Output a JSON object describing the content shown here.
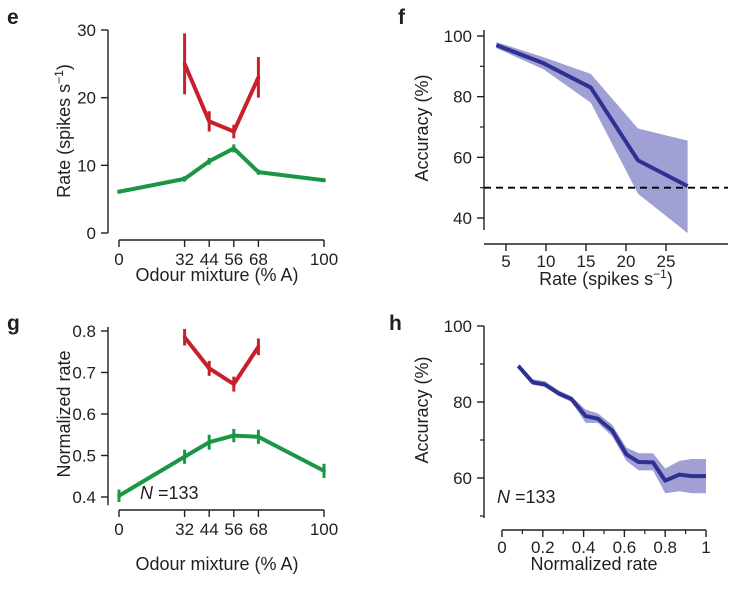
{
  "chart_data": [
    {
      "panel": "e",
      "type": "line",
      "xlabel": "Odour mixture (% A)",
      "ylabel": "Rate (spikes s",
      "ylabel_sup": "−1",
      "ylabel_close": ")",
      "x_ticks": [
        0,
        32,
        44,
        56,
        68,
        100
      ],
      "y_ticks": [
        0,
        10,
        20,
        30
      ],
      "ylim": [
        0,
        30
      ],
      "colors": {
        "red": "#c8202a",
        "green": "#1b9644"
      },
      "series": [
        {
          "color": "#c8202a",
          "x": [
            32,
            44,
            56,
            68
          ],
          "y": [
            25,
            16.5,
            15,
            23
          ],
          "err": [
            4.5,
            1.5,
            1.0,
            3.0
          ]
        },
        {
          "color": "#1b9644",
          "x": [
            0,
            32,
            44,
            56,
            68,
            100
          ],
          "y": [
            6.1,
            8,
            10.6,
            12.5,
            9,
            7.8
          ],
          "err": [
            0.3,
            0.4,
            0.5,
            0.6,
            0.4,
            0.3
          ]
        }
      ]
    },
    {
      "panel": "f",
      "type": "area",
      "xlabel": "Rate (spikes s",
      "xlabel_sup": "−1",
      "xlabel_close": ")",
      "ylabel": "Accuracy (%)",
      "x_ticks": [
        5,
        10,
        15,
        20,
        25
      ],
      "xlim": [
        2.5,
        27.7
      ],
      "y_ticks": [
        40,
        60,
        80,
        100
      ],
      "ylim": [
        35,
        100
      ],
      "reference_line": 50,
      "colors": {
        "line": "#2e3192",
        "band": "#9b9bd3"
      },
      "x": [
        3.8,
        9.7,
        15.6,
        21.5,
        27.7
      ],
      "y": [
        97,
        91,
        83,
        59,
        50.5
      ],
      "lower": [
        96,
        89,
        78,
        48,
        35
      ],
      "upper": [
        98,
        93,
        87.5,
        69.5,
        65.5
      ]
    },
    {
      "panel": "g",
      "type": "line",
      "xlabel": "Odour mixture (% A)",
      "ylabel": "Normalized rate",
      "annotation_n": "N",
      "annotation_val": " =133",
      "x_ticks": [
        0,
        32,
        44,
        56,
        68,
        100
      ],
      "y_ticks": [
        "0.4",
        "0.5",
        "0.6",
        "0.7",
        "0.8"
      ],
      "ylim": [
        0.38,
        0.81
      ],
      "colors": {
        "red": "#c8202a",
        "green": "#1b9644"
      },
      "series": [
        {
          "color": "#c8202a",
          "x": [
            32,
            44,
            56,
            68
          ],
          "y": [
            0.785,
            0.71,
            0.672,
            0.762
          ],
          "err": [
            0.02,
            0.018,
            0.018,
            0.02
          ]
        },
        {
          "color": "#1b9644",
          "x": [
            0,
            32,
            44,
            56,
            68,
            100
          ],
          "y": [
            0.403,
            0.497,
            0.532,
            0.548,
            0.545,
            0.463
          ],
          "err": [
            0.015,
            0.017,
            0.018,
            0.016,
            0.017,
            0.017
          ]
        }
      ]
    },
    {
      "panel": "h",
      "type": "area",
      "xlabel": "Normalized rate",
      "ylabel": "Accuracy (%)",
      "annotation_n": "N",
      "annotation_val": " =133",
      "x_ticks": [
        "0",
        "0.2",
        "0.4",
        "0.6",
        "0.8",
        "1"
      ],
      "xlim": [
        0,
        1
      ],
      "y_ticks": [
        60,
        80,
        100
      ],
      "ylim": [
        50,
        100
      ],
      "colors": {
        "line": "#2e3192",
        "band": "#9b9bd3"
      },
      "x": [
        0.08,
        0.15,
        0.21,
        0.28,
        0.34,
        0.41,
        0.47,
        0.54,
        0.61,
        0.67,
        0.74,
        0.8,
        0.87,
        0.93,
        1.0
      ],
      "y": [
        89.5,
        85.2,
        84.6,
        82.2,
        80.8,
        76.3,
        75.6,
        72.5,
        66.2,
        64.2,
        64.1,
        59.3,
        60.9,
        60.5,
        60.5
      ],
      "lower": [
        89,
        84.5,
        84,
        81.5,
        80,
        74.5,
        74.5,
        71,
        64.5,
        62,
        62,
        56,
        56.5,
        56,
        56
      ],
      "upper": [
        90,
        86,
        85.5,
        83,
        81.5,
        78,
        77,
        74,
        68,
        66.5,
        66.5,
        62.5,
        64.5,
        65,
        65
      ]
    }
  ],
  "panel_letters": [
    "e",
    "f",
    "g",
    "h"
  ]
}
